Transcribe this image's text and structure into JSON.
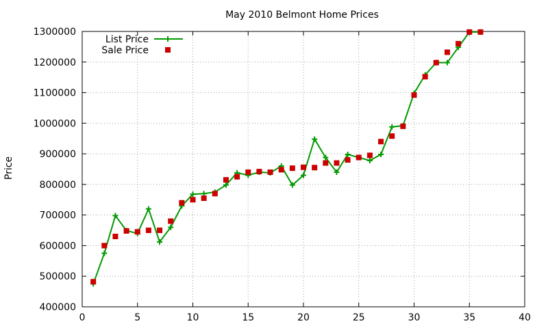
{
  "chart_data": {
    "type": "line",
    "title": "May 2010 Belmont Home Prices",
    "xlabel": "",
    "ylabel": "Price",
    "xlim": [
      0,
      40
    ],
    "ylim": [
      400000,
      1300000
    ],
    "x_ticks": [
      0,
      5,
      10,
      15,
      20,
      25,
      30,
      35,
      40
    ],
    "y_ticks": [
      400000,
      500000,
      600000,
      700000,
      800000,
      900000,
      1000000,
      1100000,
      1200000,
      1300000
    ],
    "grid": true,
    "legend_position": "top-left",
    "series": [
      {
        "name": "List Price",
        "style": "line-with-plus-markers",
        "color": "#009900",
        "x": [
          1,
          2,
          3,
          4,
          5,
          6,
          7,
          8,
          9,
          10,
          11,
          12,
          13,
          14,
          15,
          16,
          17,
          18,
          19,
          20,
          21,
          22,
          23,
          24,
          25,
          26,
          27,
          28,
          29,
          30,
          31,
          32,
          33,
          34,
          35,
          36
        ],
        "values": [
          475000,
          575000,
          698000,
          649000,
          640000,
          720000,
          612000,
          660000,
          730000,
          768000,
          770000,
          775000,
          798000,
          838000,
          830000,
          840000,
          838000,
          860000,
          798000,
          830000,
          948000,
          888000,
          840000,
          898000,
          888000,
          878000,
          898000,
          988000,
          992000,
          1098000,
          1158000,
          1198000,
          1198000,
          1248000,
          1298000,
          1298000
        ]
      },
      {
        "name": "Sale Price",
        "style": "square-markers",
        "color": "#cc0000",
        "x": [
          1,
          2,
          3,
          4,
          5,
          6,
          7,
          8,
          9,
          10,
          11,
          12,
          13,
          14,
          15,
          16,
          17,
          18,
          19,
          20,
          21,
          22,
          23,
          24,
          25,
          26,
          27,
          28,
          29,
          30,
          31,
          32,
          33,
          34,
          35,
          36
        ],
        "values": [
          482000,
          600000,
          630000,
          648000,
          645000,
          650000,
          650000,
          680000,
          740000,
          750000,
          755000,
          770000,
          815000,
          825000,
          840000,
          842000,
          840000,
          848000,
          853000,
          856000,
          855000,
          870000,
          870000,
          880000,
          888000,
          895000,
          940000,
          958000,
          990000,
          1092000,
          1152000,
          1198000,
          1232000,
          1260000,
          1298000,
          1298000
        ]
      }
    ]
  }
}
